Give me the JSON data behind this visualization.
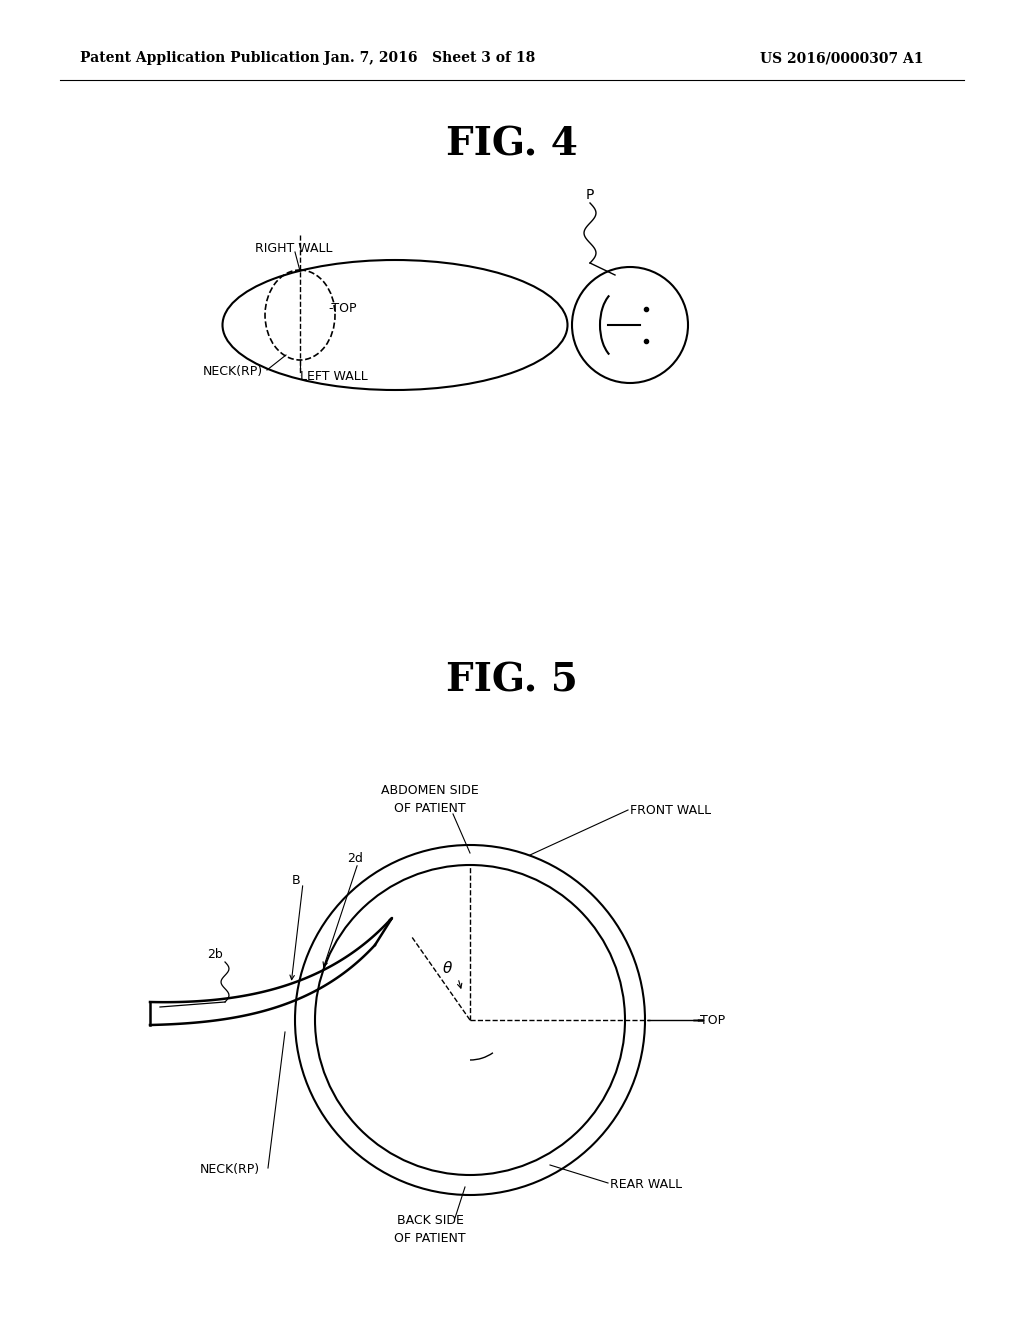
{
  "bg_color": "#ffffff",
  "header_left": "Patent Application Publication",
  "header_mid": "Jan. 7, 2016   Sheet 3 of 18",
  "header_right": "US 2016/0000307 A1",
  "fig4_title": "FIG. 4",
  "fig5_title": "FIG. 5",
  "line_color": "#000000"
}
